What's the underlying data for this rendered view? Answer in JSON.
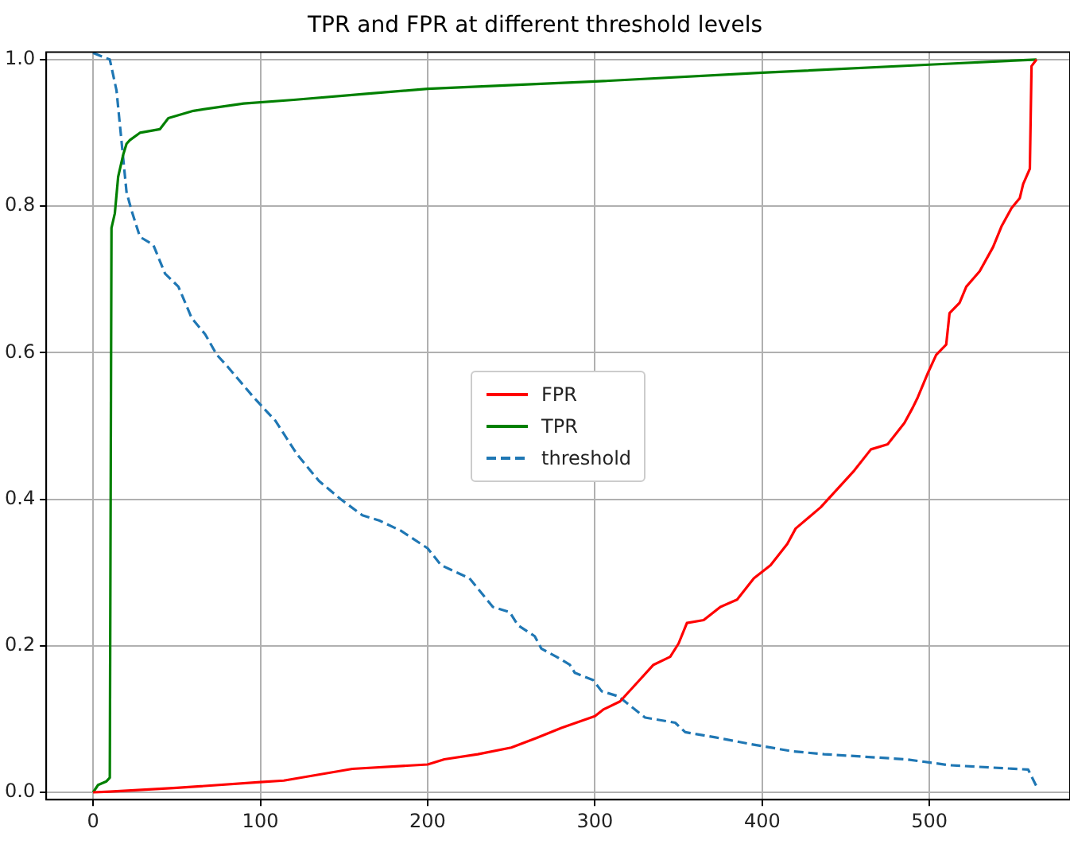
{
  "chart_data": {
    "type": "line",
    "title": "TPR and FPR at different threshold levels",
    "xlim": [
      -28,
      584
    ],
    "ylim": [
      -0.01,
      1.01
    ],
    "xticks": [
      0,
      100,
      200,
      300,
      400,
      500
    ],
    "yticks": [
      {
        "value": 0,
        "label": "0.0"
      },
      {
        "value": 0.2,
        "label": "0.2"
      },
      {
        "value": 0.4,
        "label": "0.4"
      },
      {
        "value": 0.6,
        "label": "0.6"
      },
      {
        "value": 0.8,
        "label": "0.8"
      },
      {
        "value": 1,
        "label": "1.0"
      }
    ],
    "grid": true,
    "legend": "center",
    "marker": "none",
    "series": [
      {
        "name": "FPR",
        "color": "#ff0000",
        "line_style": "solid",
        "x": [
          0,
          10,
          50,
          100,
          114,
          155,
          200,
          210,
          230,
          250,
          265,
          280,
          300,
          305,
          315,
          325,
          335,
          345,
          350,
          355,
          365,
          375,
          385,
          395,
          405,
          415,
          420,
          435,
          445,
          455,
          465,
          475,
          485,
          490,
          493,
          499,
          504,
          510,
          512,
          518,
          522,
          530,
          538,
          543,
          549,
          554,
          556,
          560,
          561,
          564
        ],
        "values": [
          0,
          0.001,
          0.006,
          0.014,
          0.016,
          0.032,
          0.038,
          0.045,
          0.052,
          0.061,
          0.074,
          0.088,
          0.104,
          0.113,
          0.124,
          0.149,
          0.174,
          0.185,
          0.203,
          0.231,
          0.235,
          0.253,
          0.263,
          0.292,
          0.31,
          0.339,
          0.36,
          0.389,
          0.414,
          0.439,
          0.468,
          0.475,
          0.504,
          0.525,
          0.539,
          0.572,
          0.597,
          0.611,
          0.654,
          0.668,
          0.69,
          0.711,
          0.744,
          0.772,
          0.797,
          0.811,
          0.83,
          0.851,
          0.991,
          1.0
        ]
      },
      {
        "name": "TPR",
        "color": "#008000",
        "line_style": "solid",
        "x": [
          0,
          3,
          8,
          10,
          11,
          13,
          15,
          18,
          20,
          22,
          28,
          40,
          45,
          60,
          90,
          120,
          162,
          200,
          300,
          400,
          500,
          564
        ],
        "values": [
          0,
          0.01,
          0.015,
          0.02,
          0.77,
          0.79,
          0.84,
          0.87,
          0.885,
          0.89,
          0.9,
          0.905,
          0.92,
          0.93,
          0.94,
          0.945,
          0.953,
          0.96,
          0.97,
          0.982,
          0.993,
          1.0
        ]
      },
      {
        "name": "threshold",
        "color": "#1f77b4",
        "line_style": "dashed",
        "x": [
          0,
          10,
          14,
          20,
          23,
          28,
          36,
          43,
          51,
          59,
          67,
          74,
          80,
          96,
          109,
          122,
          135,
          148,
          161,
          171,
          184,
          200,
          208,
          225,
          239,
          249,
          254,
          264,
          268,
          277,
          285,
          288,
          299,
          304,
          314,
          330,
          348,
          354,
          372,
          395,
          418,
          437,
          486,
          512,
          559,
          564
        ],
        "values": [
          1.009,
          1.0,
          0.958,
          0.819,
          0.794,
          0.758,
          0.747,
          0.708,
          0.69,
          0.647,
          0.625,
          0.597,
          0.582,
          0.539,
          0.507,
          0.461,
          0.425,
          0.4,
          0.378,
          0.371,
          0.357,
          0.333,
          0.31,
          0.292,
          0.253,
          0.246,
          0.228,
          0.213,
          0.196,
          0.185,
          0.174,
          0.163,
          0.153,
          0.138,
          0.131,
          0.102,
          0.095,
          0.082,
          0.075,
          0.065,
          0.056,
          0.052,
          0.045,
          0.037,
          0.031,
          0.008
        ]
      }
    ]
  }
}
